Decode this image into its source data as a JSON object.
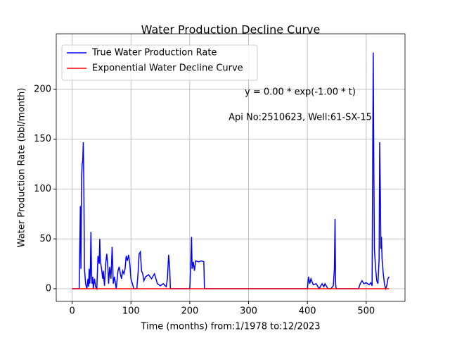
{
  "chart_data": {
    "type": "line",
    "title": "Water Production Decline Curve",
    "xlabel": "Time (months) from:1/1978 to:12/2023",
    "ylabel": "Water Production Rate (bbl/month)",
    "annotations": [
      "y = 0.00 * exp(-1.00 * t)",
      "Api No:2510623, Well:61-SX-15"
    ],
    "xlim": [
      -27,
      566
    ],
    "ylim": [
      -12.7,
      255.8
    ],
    "xticks": [
      0,
      100,
      200,
      300,
      400,
      500
    ],
    "yticks": [
      0,
      50,
      100,
      150,
      200
    ],
    "grid": true,
    "legend": "upper left",
    "series": [
      {
        "name": "True Water Production Rate",
        "color": "#0000ff",
        "x": [
          0,
          12,
          14,
          15,
          16,
          17,
          18,
          19,
          20,
          21,
          23,
          25,
          27,
          28,
          29,
          30,
          31,
          32,
          33,
          34,
          35,
          36,
          38,
          40,
          42,
          44,
          46,
          47,
          48,
          50,
          52,
          53,
          55,
          57,
          59,
          61,
          62,
          64,
          66,
          68,
          70,
          72,
          75,
          78,
          80,
          82,
          84,
          86,
          88,
          90,
          92,
          94,
          96,
          98,
          100,
          105,
          110,
          112,
          114,
          116,
          118,
          120,
          122,
          125,
          130,
          135,
          140,
          145,
          150,
          155,
          160,
          162,
          164,
          166,
          167,
          200,
          202,
          203,
          204,
          206,
          208,
          210,
          215,
          220,
          224,
          225,
          400,
          402,
          404,
          406,
          410,
          415,
          420,
          425,
          428,
          430,
          435,
          440,
          444,
          446,
          447,
          448,
          449,
          487,
          490,
          493,
          496,
          500,
          505,
          508,
          510,
          512,
          513,
          514,
          516,
          518,
          520,
          522,
          523,
          524,
          525,
          526,
          527,
          529,
          531,
          533,
          535,
          537,
          539
        ],
        "values": [
          0,
          0,
          83,
          20,
          110,
          125,
          128,
          147,
          100,
          20,
          5,
          0,
          10,
          2,
          20,
          5,
          18,
          57,
          15,
          5,
          12,
          0,
          10,
          2,
          0,
          33,
          25,
          50,
          28,
          20,
          10,
          18,
          3,
          25,
          35,
          20,
          5,
          22,
          10,
          42,
          5,
          12,
          0,
          18,
          22,
          15,
          10,
          18,
          15,
          20,
          33,
          28,
          34,
          25,
          10,
          0,
          0,
          15,
          35,
          37,
          18,
          15,
          8,
          12,
          14,
          10,
          15,
          5,
          3,
          5,
          2,
          10,
          34,
          20,
          0,
          0,
          28,
          52,
          20,
          27,
          18,
          28,
          27,
          28,
          27,
          0,
          0,
          12,
          5,
          10,
          4,
          5,
          0,
          5,
          2,
          5,
          0,
          0,
          3,
          20,
          70,
          5,
          0,
          0,
          5,
          8,
          5,
          6,
          4,
          6,
          3,
          237,
          120,
          40,
          20,
          8,
          5,
          30,
          147,
          100,
          40,
          52,
          30,
          15,
          5,
          0,
          3,
          10,
          12
        ]
      },
      {
        "name": "Exponential Water Decline Curve",
        "color": "#ff0000",
        "x": [
          0,
          539
        ],
        "values": [
          0,
          0
        ]
      }
    ]
  }
}
